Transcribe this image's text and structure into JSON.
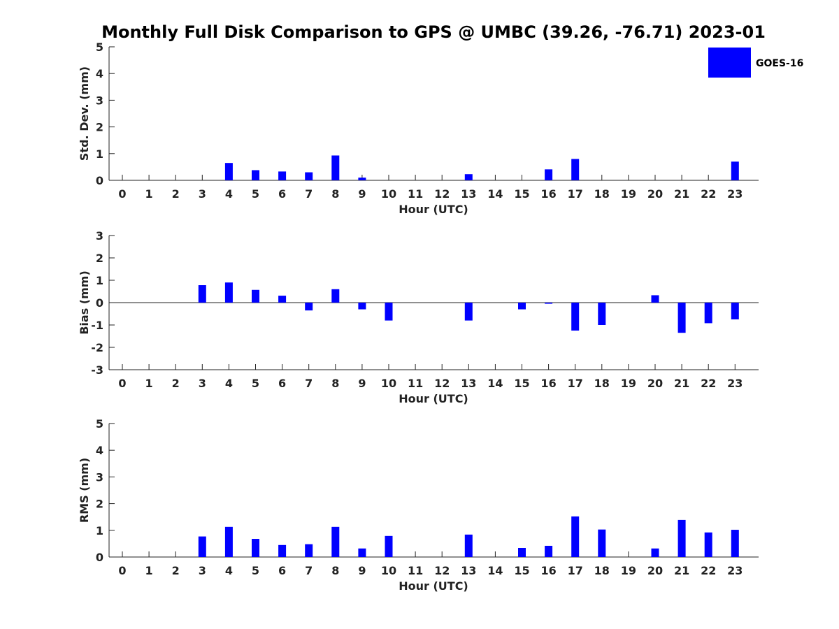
{
  "chart_data": {
    "type": "bar",
    "title": "Monthly Full Disk Comparison to GPS @ UMBC (39.26, -76.71) 2023-01",
    "categories": [
      "0",
      "1",
      "2",
      "3",
      "4",
      "5",
      "6",
      "7",
      "8",
      "9",
      "10",
      "11",
      "12",
      "13",
      "14",
      "15",
      "16",
      "17",
      "18",
      "19",
      "20",
      "21",
      "22",
      "23"
    ],
    "legend": {
      "placement": "top-right",
      "entries": [
        "GOES-16"
      ]
    },
    "series_color": "#0000ff",
    "grid": false,
    "panels": [
      {
        "name": "std-dev",
        "ylabel": "Std. Dev. (mm)",
        "xlabel": "Hour (UTC)",
        "ylim": [
          0,
          5
        ],
        "yticks": [
          0,
          1,
          2,
          3,
          4,
          5
        ],
        "series": [
          {
            "name": "GOES-16",
            "values": [
              null,
              null,
              null,
              null,
              0.65,
              0.38,
              0.33,
              0.3,
              0.93,
              0.1,
              null,
              null,
              null,
              0.23,
              null,
              null,
              0.41,
              0.8,
              null,
              null,
              null,
              null,
              null,
              0.7
            ]
          }
        ]
      },
      {
        "name": "bias",
        "ylabel": "Bias (mm)",
        "xlabel": "Hour (UTC)",
        "ylim": [
          -3,
          3
        ],
        "yticks": [
          -3,
          -2,
          -1,
          0,
          1,
          2,
          3
        ],
        "zero_line": true,
        "series": [
          {
            "name": "GOES-16",
            "values": [
              null,
              null,
              null,
              0.78,
              0.9,
              0.57,
              0.31,
              -0.35,
              0.6,
              -0.3,
              -0.8,
              null,
              null,
              -0.8,
              null,
              -0.3,
              -0.05,
              -1.25,
              -1.0,
              null,
              0.33,
              -1.35,
              -0.92,
              -0.75
            ]
          }
        ]
      },
      {
        "name": "rms",
        "ylabel": "RMS (mm)",
        "xlabel": "Hour (UTC)",
        "ylim": [
          0,
          5
        ],
        "yticks": [
          0,
          1,
          2,
          3,
          4,
          5
        ],
        "series": [
          {
            "name": "GOES-16",
            "values": [
              null,
              null,
              null,
              0.77,
              1.13,
              0.68,
              0.45,
              0.48,
              1.13,
              0.32,
              0.79,
              null,
              null,
              0.84,
              null,
              0.34,
              0.42,
              1.52,
              1.03,
              null,
              0.32,
              1.39,
              0.92,
              1.02
            ]
          }
        ]
      }
    ]
  }
}
